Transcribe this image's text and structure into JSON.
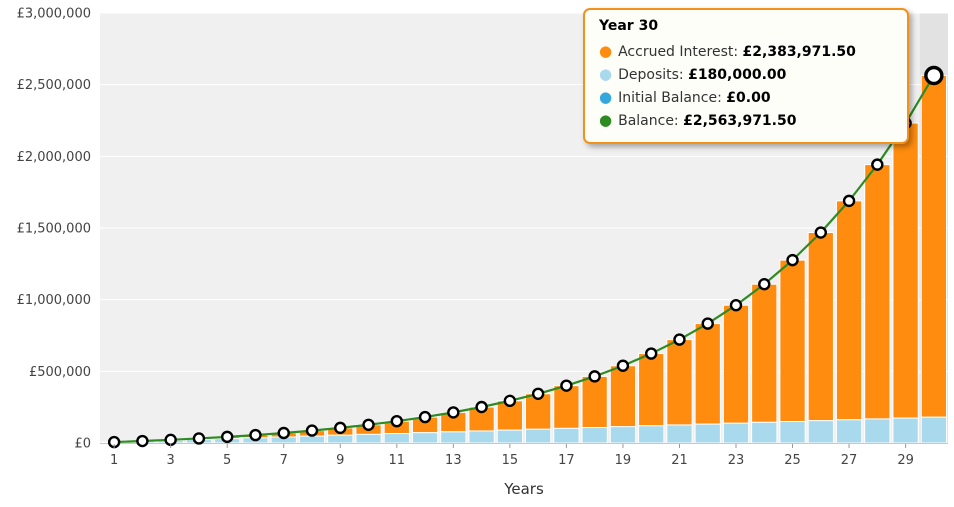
{
  "chart": {
    "xlabel": "Years",
    "tooltip": {
      "title": "Year 30",
      "border_color": "#f2921d",
      "rows": [
        {
          "label": "Accrued Interest:",
          "value": "£2,383,971.50",
          "color": "#ff8c0e"
        },
        {
          "label": "Deposits:",
          "value": "£180,000.00",
          "color": "#a9d9ec"
        },
        {
          "label": "Initial Balance:",
          "value": "£0.00",
          "color": "#33a7de"
        },
        {
          "label": "Balance:",
          "value": "£2,563,971.50",
          "color": "#2e8b22"
        }
      ]
    }
  },
  "chart_data": {
    "type": "bar",
    "subtype": "stacked-bars-with-line-overlay",
    "title": "",
    "xlabel": "Years",
    "ylabel": "",
    "ylim": [
      0,
      3000000
    ],
    "grid": "horizontal-white-on-gray",
    "plot_bg": "#f0f0f0",
    "hover_index": 29,
    "x": [
      1,
      2,
      3,
      4,
      5,
      6,
      7,
      8,
      9,
      10,
      11,
      12,
      13,
      14,
      15,
      16,
      17,
      18,
      19,
      20,
      21,
      22,
      23,
      24,
      25,
      26,
      27,
      28,
      29,
      30
    ],
    "x_tick_labels_shown": [
      1,
      3,
      5,
      7,
      9,
      11,
      13,
      15,
      17,
      19,
      21,
      23,
      25,
      27,
      29
    ],
    "y_ticks": [
      0,
      500000,
      1000000,
      1500000,
      2000000,
      2500000,
      3000000
    ],
    "y_tick_labels": [
      "£0",
      "£500,000",
      "£1,000,000",
      "£1,500,000",
      "£2,000,000",
      "£2,500,000",
      "£3,000,000"
    ],
    "series": [
      {
        "name": "Deposits",
        "type": "bar",
        "stacked": true,
        "color": "#a9d9ec",
        "values": [
          6000,
          12000,
          18000,
          24000,
          30000,
          36000,
          42000,
          48000,
          54000,
          60000,
          66000,
          72000,
          78000,
          84000,
          90000,
          96000,
          102000,
          108000,
          114000,
          120000,
          126000,
          132000,
          138000,
          144000,
          150000,
          156000,
          162000,
          168000,
          174000,
          180000
        ]
      },
      {
        "name": "Accrued Interest",
        "type": "bar",
        "stacked": true,
        "color": "#ff8c0e",
        "values": [
          392,
          1716,
          4109,
          7727,
          12749,
          19379,
          27853,
          38438,
          51445,
          67226,
          86183,
          108784,
          135555,
          167112,
          204149,
          247471,
          297995,
          356767,
          424987,
          504041,
          595510,
          701197,
          823182,
          963840,
          1125907,
          1312503,
          1527203,
          1774104,
          2057939,
          2383971.5
        ]
      },
      {
        "name": "Initial Balance",
        "type": "bar",
        "stacked": true,
        "color": "#33a7de",
        "values": [
          0,
          0,
          0,
          0,
          0,
          0,
          0,
          0,
          0,
          0,
          0,
          0,
          0,
          0,
          0,
          0,
          0,
          0,
          0,
          0,
          0,
          0,
          0,
          0,
          0,
          0,
          0,
          0,
          0,
          0
        ]
      },
      {
        "name": "Balance",
        "type": "line",
        "color": "#2e8b22",
        "marker": {
          "fill": "#ffffff",
          "stroke": "#000000"
        },
        "values": [
          6392,
          13716,
          22109,
          31727,
          42749,
          55379,
          69853,
          86438,
          105445,
          127226,
          152183,
          180784,
          213555,
          251112,
          294149,
          343471,
          399995,
          464767,
          538987,
          624041,
          721510,
          833197,
          961182,
          1107840,
          1275907,
          1468503,
          1689203,
          1942104,
          2231939,
          2563971.5
        ]
      }
    ]
  }
}
